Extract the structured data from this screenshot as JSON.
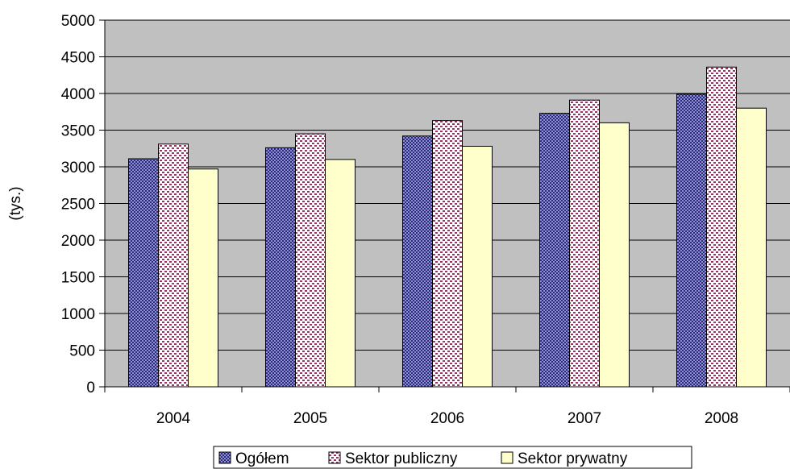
{
  "chart_data": {
    "type": "bar",
    "title": "",
    "xlabel": "",
    "ylabel": "(tys.)",
    "categories": [
      "2004",
      "2005",
      "2006",
      "2007",
      "2008"
    ],
    "series": [
      {
        "name": "Ogółem",
        "values": [
          3110,
          3260,
          3420,
          3730,
          3990
        ],
        "color": "#5a5aa8",
        "pattern": "dots"
      },
      {
        "name": "Sektor publiczny",
        "values": [
          3310,
          3450,
          3630,
          3910,
          4360
        ],
        "color": "#993366",
        "pattern": "dashes"
      },
      {
        "name": "Sektor prywatny",
        "values": [
          2970,
          3100,
          3280,
          3600,
          3800
        ],
        "color": "#ffffcc",
        "pattern": "solid"
      }
    ],
    "ylim": [
      0,
      5000
    ],
    "yticks": [
      0,
      500,
      1000,
      1500,
      2000,
      2500,
      3000,
      3500,
      4000,
      4500,
      5000
    ],
    "grid": true,
    "legend_position": "bottom",
    "plot_background": "#c0c0c0"
  }
}
